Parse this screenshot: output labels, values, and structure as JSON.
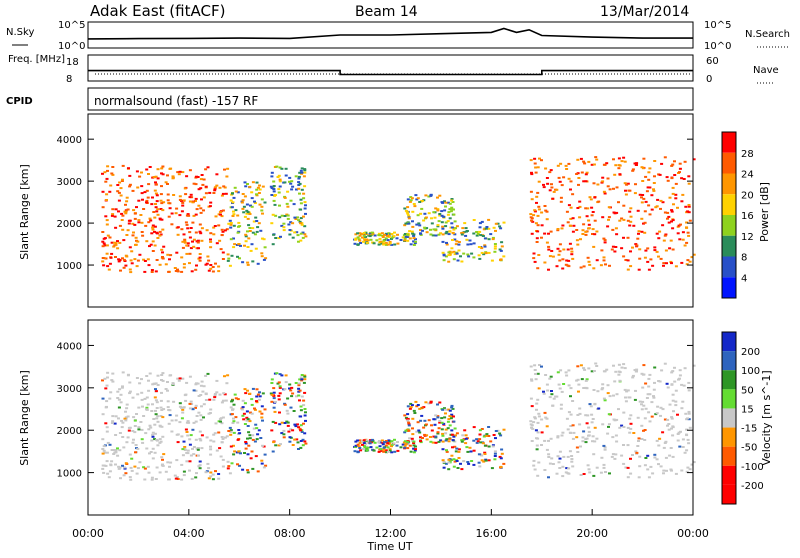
{
  "header": {
    "station": "Adak East (fitACF)",
    "beam": "Beam 14",
    "date": "13/Mar/2014"
  },
  "chart_data": [
    {
      "type": "line",
      "panel": "noise",
      "left_label": "N.Sky",
      "right_label": "N.Search",
      "left_ticks": [
        "10^5",
        "10^0"
      ],
      "right_ticks": [
        "10^5",
        "10^0"
      ],
      "x_hours": [
        0,
        2,
        4,
        6,
        8,
        10,
        12,
        14,
        16,
        16.5,
        17,
        17.5,
        18,
        20,
        22,
        24
      ],
      "level": [
        0.35,
        0.36,
        0.37,
        0.38,
        0.37,
        0.5,
        0.5,
        0.55,
        0.6,
        0.75,
        0.6,
        0.7,
        0.48,
        0.42,
        0.38,
        0.38
      ]
    },
    {
      "type": "line",
      "panel": "frequency",
      "left_label": "Freq. [MHz]",
      "right_label": "Nave",
      "left_ticks": [
        "18",
        "8"
      ],
      "right_ticks": [
        "60",
        "0"
      ],
      "segments": [
        {
          "x_start": 0,
          "x_end": 10,
          "freq_mhz": 12
        },
        {
          "x_start": 10,
          "x_end": 18,
          "freq_mhz": 10.5
        },
        {
          "x_start": 18,
          "x_end": 24,
          "freq_mhz": 12
        }
      ],
      "nave_level": 2
    },
    {
      "type": "text",
      "panel": "cpid",
      "label": "CPID",
      "text": "normalsound (fast) -157 RF"
    },
    {
      "type": "heatmap",
      "panel": "power",
      "ylabel": "Slant Range [km]",
      "y_ticks": [
        "1000",
        "2000",
        "3000",
        "4000"
      ],
      "ylim": [
        0,
        4600
      ],
      "colorbar_label": "Power [dB]",
      "colorbar_ticks": [
        "28",
        "24",
        "20",
        "16",
        "12",
        "8",
        "4"
      ],
      "colorbar_colors": [
        "#ff0000",
        "#ff5a00",
        "#ff9600",
        "#ffd200",
        "#8ed21e",
        "#2a8c5a",
        "#2850c8",
        "#0014ff"
      ],
      "echo_regions": [
        {
          "x_start": 0.5,
          "x_end": 5.5,
          "r_low": 850,
          "r_high": 3400,
          "note": "strong"
        },
        {
          "x_start": 5.5,
          "x_end": 7.0,
          "r_low": 1000,
          "r_high": 3000,
          "note": "decaying"
        },
        {
          "x_start": 7.2,
          "x_end": 8.6,
          "r_low": 1500,
          "r_high": 3400
        },
        {
          "x_start": 10.5,
          "x_end": 13.0,
          "r_low": 1500,
          "r_high": 1800
        },
        {
          "x_start": 12.5,
          "x_end": 14.5,
          "r_low": 1700,
          "r_high": 2700
        },
        {
          "x_start": 14.0,
          "x_end": 16.5,
          "r_low": 1100,
          "r_high": 2100
        },
        {
          "x_start": 17.5,
          "x_end": 24.0,
          "r_low": 900,
          "r_high": 3600,
          "note": "strong"
        }
      ]
    },
    {
      "type": "heatmap",
      "panel": "velocity",
      "ylabel": "Slant Range [km]",
      "xlabel": "Time UT",
      "x_ticks": [
        "00:00",
        "04:00",
        "08:00",
        "12:00",
        "16:00",
        "20:00",
        "00:00"
      ],
      "y_ticks": [
        "1000",
        "2000",
        "3000",
        "4000"
      ],
      "ylim": [
        0,
        4600
      ],
      "colorbar_label": "Velocity [m s^-1]",
      "colorbar_ticks": [
        "200",
        "100",
        "50",
        "15",
        "-15",
        "-50",
        "-100",
        "-200"
      ],
      "colorbar_colors": [
        "#1428c8",
        "#2e64be",
        "#2e9626",
        "#64dc32",
        "#c8c8c8",
        "#ff9600",
        "#ff5a00",
        "#ff0000"
      ]
    }
  ]
}
